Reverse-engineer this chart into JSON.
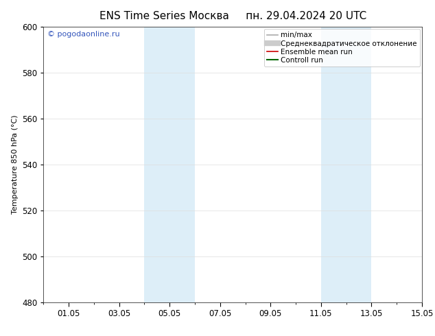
{
  "title_left": "ENS Time Series Москва",
  "title_right": "пн. 29.04.2024 20 UTC",
  "ylabel": "Temperature 850 hPa (°С)",
  "ylim": [
    480,
    600
  ],
  "yticks": [
    480,
    500,
    520,
    540,
    560,
    580,
    600
  ],
  "xlim": [
    0,
    15
  ],
  "xtick_labels": [
    "01.05",
    "03.05",
    "05.05",
    "07.05",
    "09.05",
    "11.05",
    "13.05",
    "15.05"
  ],
  "xtick_positions": [
    1,
    3,
    5,
    7,
    9,
    11,
    13,
    15
  ],
  "blue_bands": [
    {
      "xstart": 4.0,
      "xend": 5.0
    },
    {
      "xstart": 5.0,
      "xend": 6.0
    },
    {
      "xstart": 11.0,
      "xend": 12.0
    },
    {
      "xstart": 12.0,
      "xend": 13.0
    }
  ],
  "band_color": "#ddeef8",
  "legend_items": [
    {
      "label": "min/max",
      "color": "#aaaaaa",
      "lw": 1.2,
      "ls": "-"
    },
    {
      "label": "Среднеквадратическое отклонение",
      "color": "#cccccc",
      "lw": 6,
      "ls": "-"
    },
    {
      "label": "Ensemble mean run",
      "color": "#cc0000",
      "lw": 1.2,
      "ls": "-"
    },
    {
      "label": "Controll run",
      "color": "#006600",
      "lw": 1.5,
      "ls": "-"
    }
  ],
  "watermark": "© pogodaonline.ru",
  "watermark_color": "#3355bb",
  "bg_color": "#ffffff",
  "grid_color": "#dddddd",
  "title_fontsize": 11,
  "axis_fontsize": 8,
  "tick_fontsize": 8.5,
  "legend_fontsize": 7.5
}
